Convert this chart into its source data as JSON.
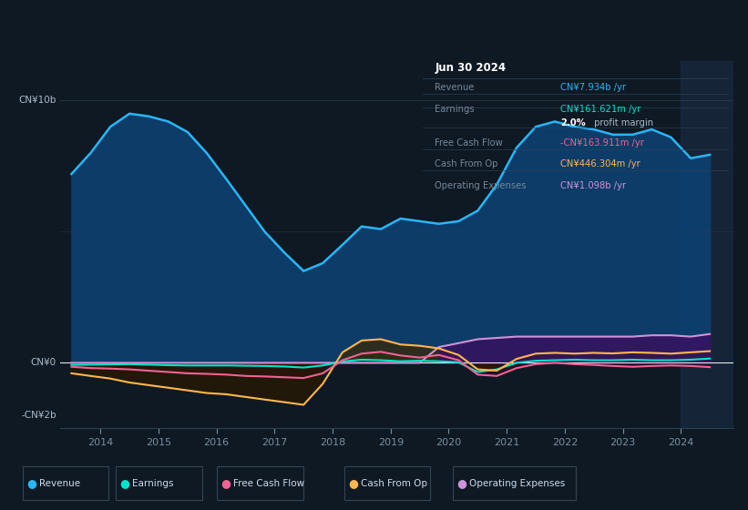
{
  "bg_color": "#0e1923",
  "plot_bg_color": "#0e1923",
  "line_colors": {
    "revenue": "#29b6f6",
    "earnings": "#00e5cc",
    "free_cash_flow": "#f06292",
    "cash_from_op": "#ffb74d",
    "op_expenses": "#ce93d8"
  },
  "title_box": {
    "date": "Jun 30 2024",
    "rows": [
      {
        "label": "Revenue",
        "value": "CN¥7.934b /yr",
        "value_color": "#29b6f6"
      },
      {
        "label": "Earnings",
        "value": "CN¥161.621m /yr",
        "value_color": "#00e5cc"
      },
      {
        "label": "",
        "bold": "2.0%",
        "rest": " profit margin"
      },
      {
        "label": "Free Cash Flow",
        "value": "-CN¥163.911m /yr",
        "value_color": "#f06292"
      },
      {
        "label": "Cash From Op",
        "value": "CN¥446.304m /yr",
        "value_color": "#ffb74d"
      },
      {
        "label": "Operating Expenses",
        "value": "CN¥1.098b /yr",
        "value_color": "#ce93d8"
      }
    ]
  },
  "legend": [
    {
      "label": "Revenue",
      "color": "#29b6f6"
    },
    {
      "label": "Earnings",
      "color": "#00e5cc"
    },
    {
      "label": "Free Cash Flow",
      "color": "#f06292"
    },
    {
      "label": "Cash From Op",
      "color": "#ffb74d"
    },
    {
      "label": "Operating Expenses",
      "color": "#ce93d8"
    }
  ],
  "ylim": [
    -2500000000.0,
    11500000000.0
  ],
  "xlim": [
    2013.3,
    2024.9
  ],
  "x": [
    2013.5,
    2013.83,
    2014.17,
    2014.5,
    2014.83,
    2015.17,
    2015.5,
    2015.83,
    2016.17,
    2016.5,
    2016.83,
    2017.17,
    2017.5,
    2017.83,
    2018.17,
    2018.5,
    2018.83,
    2019.17,
    2019.5,
    2019.83,
    2020.17,
    2020.5,
    2020.83,
    2021.17,
    2021.5,
    2021.83,
    2022.17,
    2022.5,
    2022.83,
    2023.17,
    2023.5,
    2023.83,
    2024.17,
    2024.5
  ],
  "revenue": [
    7200000000.0,
    8000000000.0,
    9000000000.0,
    9500000000.0,
    9400000000.0,
    9200000000.0,
    8800000000.0,
    8000000000.0,
    7000000000.0,
    6000000000.0,
    5000000000.0,
    4200000000.0,
    3500000000.0,
    3800000000.0,
    4500000000.0,
    5200000000.0,
    5100000000.0,
    5500000000.0,
    5400000000.0,
    5300000000.0,
    5400000000.0,
    5800000000.0,
    6800000000.0,
    8200000000.0,
    9000000000.0,
    9200000000.0,
    9000000000.0,
    8900000000.0,
    8700000000.0,
    8700000000.0,
    8900000000.0,
    8600000000.0,
    7800000000.0,
    7934000000.0
  ],
  "earnings": [
    -80000000.0,
    -70000000.0,
    -60000000.0,
    -50000000.0,
    -70000000.0,
    -90000000.0,
    -100000000.0,
    -100000000.0,
    -100000000.0,
    -110000000.0,
    -120000000.0,
    -140000000.0,
    -180000000.0,
    -100000000.0,
    50000000.0,
    120000000.0,
    100000000.0,
    60000000.0,
    80000000.0,
    60000000.0,
    20000000.0,
    -350000000.0,
    -250000000.0,
    0.0,
    80000000.0,
    100000000.0,
    120000000.0,
    100000000.0,
    100000000.0,
    120000000.0,
    100000000.0,
    100000000.0,
    120000000.0,
    162000000.0
  ],
  "free_cash_flow": [
    -150000000.0,
    -200000000.0,
    -220000000.0,
    -250000000.0,
    -300000000.0,
    -350000000.0,
    -400000000.0,
    -420000000.0,
    -450000000.0,
    -500000000.0,
    -520000000.0,
    -550000000.0,
    -580000000.0,
    -400000000.0,
    100000000.0,
    350000000.0,
    420000000.0,
    280000000.0,
    200000000.0,
    300000000.0,
    100000000.0,
    -450000000.0,
    -500000000.0,
    -200000000.0,
    -50000000.0,
    0.0,
    -50000000.0,
    -80000000.0,
    -120000000.0,
    -150000000.0,
    -120000000.0,
    -100000000.0,
    -120000000.0,
    -164000000.0
  ],
  "cash_from_op": [
    -400000000.0,
    -500000000.0,
    -600000000.0,
    -750000000.0,
    -850000000.0,
    -950000000.0,
    -1050000000.0,
    -1150000000.0,
    -1200000000.0,
    -1300000000.0,
    -1400000000.0,
    -1500000000.0,
    -1600000000.0,
    -800000000.0,
    400000000.0,
    850000000.0,
    900000000.0,
    700000000.0,
    650000000.0,
    550000000.0,
    300000000.0,
    -250000000.0,
    -300000000.0,
    150000000.0,
    350000000.0,
    380000000.0,
    350000000.0,
    380000000.0,
    360000000.0,
    400000000.0,
    380000000.0,
    350000000.0,
    400000000.0,
    446000000.0
  ],
  "op_expenses": [
    0.0,
    0.0,
    0.0,
    0.0,
    0.0,
    0.0,
    0.0,
    0.0,
    0.0,
    0.0,
    0.0,
    0.0,
    0.0,
    0.0,
    0.0,
    0.0,
    0.0,
    0.0,
    0.0,
    600000000.0,
    750000000.0,
    900000000.0,
    950000000.0,
    1000000000.0,
    1000000000.0,
    1000000000.0,
    1000000000.0,
    1000000000.0,
    1000000000.0,
    1000000000.0,
    1050000000.0,
    1050000000.0,
    1000000000.0,
    1098000000.0
  ],
  "highlight_start": 2024.0,
  "highlight_end": 2024.9
}
